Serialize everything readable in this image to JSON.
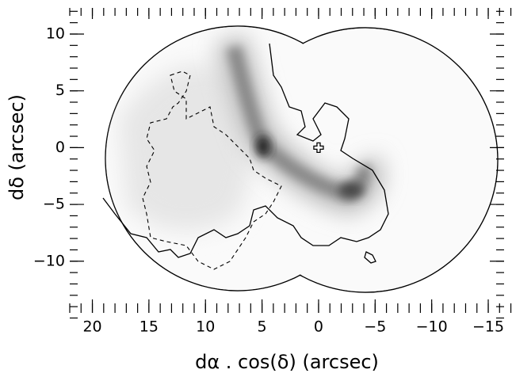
{
  "chart_data": {
    "type": "image",
    "xlabel": "dα . cos(δ) (arcsec)",
    "ylabel": "dδ (arcsec)",
    "xlim": [
      22,
      -16.4
    ],
    "ylim": [
      -14.2,
      12.3
    ],
    "xticks": [
      20,
      15,
      10,
      5,
      0,
      {
        "value": -5,
        "label": "−5"
      },
      {
        "value": -10,
        "label": "−10"
      },
      {
        "value": -15,
        "label": "−15"
      }
    ],
    "yticks": [
      {
        "value": -10,
        "label": "−10"
      },
      {
        "value": -5,
        "label": "−5"
      },
      0,
      5,
      10
    ],
    "reference_marker": {
      "x": 0,
      "y": 0
    },
    "colormap": "gray_r"
  }
}
